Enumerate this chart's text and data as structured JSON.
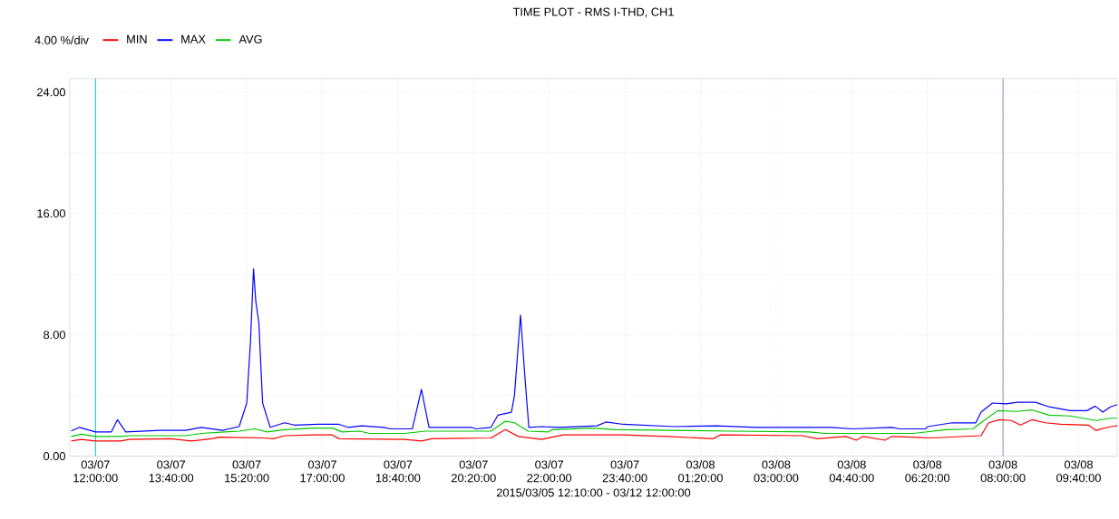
{
  "chart_data": {
    "type": "line",
    "title": "TIME PLOT - RMS I-THD, CH1",
    "xlabel": "2015/03/05 12:10:00 - 03/12 12:00:00",
    "annotations": [
      "4.00 %/div"
    ],
    "xlim": [
      "2015-03-07T11:26",
      "2015-03-08T10:31"
    ],
    "xticks": [
      {
        "value": "2015-03-07T12:00",
        "label": "03/07 12:00:00"
      },
      {
        "value": "2015-03-07T13:40",
        "label": "03/07 13:40:00"
      },
      {
        "value": "2015-03-07T15:20",
        "label": "03/07 15:20:00"
      },
      {
        "value": "2015-03-07T17:00",
        "label": "03/07 17:00:00"
      },
      {
        "value": "2015-03-07T18:40",
        "label": "03/07 18:40:00"
      },
      {
        "value": "2015-03-07T20:20",
        "label": "03/07 20:20:00"
      },
      {
        "value": "2015-03-07T22:00",
        "label": "03/07 22:00:00"
      },
      {
        "value": "2015-03-07T23:40",
        "label": "03/07 23:40:00"
      },
      {
        "value": "2015-03-08T01:20",
        "label": "03/08 01:20:00"
      },
      {
        "value": "2015-03-08T03:00",
        "label": "03/08 03:00:00"
      },
      {
        "value": "2015-03-08T04:40",
        "label": "03/08 04:40:00"
      },
      {
        "value": "2015-03-08T06:20",
        "label": "03/08 06:20:00"
      },
      {
        "value": "2015-03-08T08:00",
        "label": "03/08 08:00:00"
      },
      {
        "value": "2015-03-08T09:40",
        "label": "03/08 09:40:00"
      }
    ],
    "ylim": [
      0,
      24.9
    ],
    "yticks": [
      {
        "value": 0,
        "label": "0.00"
      },
      {
        "value": 4,
        "label": null
      },
      {
        "value": 8,
        "label": "8.00"
      },
      {
        "value": 12,
        "label": null
      },
      {
        "value": 16,
        "label": "16.00"
      },
      {
        "value": 20,
        "label": null
      },
      {
        "value": 24,
        "label": "24.00"
      }
    ],
    "grid": true,
    "legend": "top left",
    "ref_lines": [
      {
        "axis": "x",
        "value": "2015-03-07T12:00",
        "color": "#00c0c8"
      },
      {
        "axis": "x",
        "value": "2015-03-08T08:00",
        "color": "#8c8cc8"
      }
    ],
    "series": [
      {
        "name": "MIN",
        "color": "#ff0000",
        "x": [
          "2015-03-07T11:28",
          "2015-03-07T11:41",
          "2015-03-07T12:00",
          "2015-03-07T12:33",
          "2015-03-07T12:45",
          "2015-03-07T13:39",
          "2015-03-07T14:07",
          "2015-03-07T14:34",
          "2015-03-07T14:43",
          "2015-03-07T15:42",
          "2015-03-07T15:55",
          "2015-03-07T16:10",
          "2015-03-07T16:50",
          "2015-03-07T17:13",
          "2015-03-07T17:22",
          "2015-03-07T18:49",
          "2015-03-07T19:11",
          "2015-03-07T19:25",
          "2015-03-07T20:43",
          "2015-03-07T21:02",
          "2015-03-07T21:19",
          "2015-03-07T21:50",
          "2015-03-07T22:04",
          "2015-03-07T22:18",
          "2015-03-07T23:38",
          "2015-03-08T00:35",
          "2015-03-08T01:37",
          "2015-03-08T01:46",
          "2015-03-08T03:35",
          "2015-03-08T03:54",
          "2015-03-08T04:32",
          "2015-03-08T04:46",
          "2015-03-08T04:55",
          "2015-03-08T05:24",
          "2015-03-08T05:33",
          "2015-03-08T06:25",
          "2015-03-08T07:31",
          "2015-03-08T07:41",
          "2015-03-08T07:55",
          "2015-03-08T08:11",
          "2015-03-08T08:23",
          "2015-03-08T08:38",
          "2015-03-08T08:56",
          "2015-03-08T09:16",
          "2015-03-08T09:53",
          "2015-03-08T10:03",
          "2015-03-08T10:22",
          "2015-03-08T10:31"
        ],
        "values": [
          1.0,
          1.1,
          1.0,
          1.0,
          1.1,
          1.15,
          1.0,
          1.15,
          1.25,
          1.2,
          1.15,
          1.35,
          1.4,
          1.4,
          1.15,
          1.1,
          1.0,
          1.15,
          1.2,
          1.75,
          1.3,
          1.1,
          1.25,
          1.4,
          1.4,
          1.3,
          1.15,
          1.4,
          1.35,
          1.15,
          1.3,
          1.05,
          1.3,
          1.05,
          1.3,
          1.2,
          1.35,
          2.2,
          2.4,
          2.35,
          2.05,
          2.4,
          2.2,
          2.1,
          2.05,
          1.7,
          1.95,
          2.0
        ]
      },
      {
        "name": "MAX",
        "color": "#0000ff",
        "x": [
          "2015-03-07T11:28",
          "2015-03-07T11:39",
          "2015-03-07T12:00",
          "2015-03-07T12:21",
          "2015-03-07T12:29",
          "2015-03-07T12:40",
          "2015-03-07T13:26",
          "2015-03-07T13:59",
          "2015-03-07T14:20",
          "2015-03-07T14:48",
          "2015-03-07T15:10",
          "2015-03-07T15:20",
          "2015-03-07T15:25",
          "2015-03-07T15:29",
          "2015-03-07T15:32",
          "2015-03-07T15:36",
          "2015-03-07T15:41",
          "2015-03-07T15:51",
          "2015-03-07T16:10",
          "2015-03-07T16:23",
          "2015-03-07T16:55",
          "2015-03-07T17:22",
          "2015-03-07T17:34",
          "2015-03-07T17:52",
          "2015-03-07T18:21",
          "2015-03-07T18:30",
          "2015-03-07T18:59",
          "2015-03-07T19:11",
          "2015-03-07T19:21",
          "2015-03-07T20:17",
          "2015-03-07T20:23",
          "2015-03-07T20:43",
          "2015-03-07T20:52",
          "2015-03-07T21:10",
          "2015-03-07T21:14",
          "2015-03-07T21:22",
          "2015-03-07T21:28",
          "2015-03-07T21:33",
          "2015-03-07T21:50",
          "2015-03-07T22:13",
          "2015-03-07T23:03",
          "2015-03-07T23:15",
          "2015-03-07T23:38",
          "2015-03-08T00:45",
          "2015-03-08T01:41",
          "2015-03-08T02:34",
          "2015-03-08T04:13",
          "2015-03-08T04:41",
          "2015-03-08T05:33",
          "2015-03-08T05:43",
          "2015-03-08T06:18",
          "2015-03-08T06:20",
          "2015-03-08T06:53",
          "2015-03-08T07:24",
          "2015-03-08T07:31",
          "2015-03-08T07:46",
          "2015-03-08T08:04",
          "2015-03-08T08:19",
          "2015-03-08T08:43",
          "2015-03-08T09:01",
          "2015-03-08T09:29",
          "2015-03-08T09:51",
          "2015-03-08T10:02",
          "2015-03-08T10:12",
          "2015-03-08T10:22",
          "2015-03-08T10:31"
        ],
        "values": [
          1.66,
          1.9,
          1.6,
          1.6,
          2.4,
          1.6,
          1.7,
          1.7,
          1.9,
          1.7,
          1.95,
          3.5,
          7.6,
          12.35,
          10.2,
          8.8,
          3.5,
          1.9,
          2.2,
          2.05,
          2.1,
          2.1,
          1.9,
          2.0,
          1.9,
          1.8,
          1.8,
          4.4,
          1.9,
          1.9,
          1.8,
          1.9,
          2.7,
          2.9,
          4.0,
          9.3,
          5.1,
          1.9,
          1.95,
          1.9,
          2.0,
          2.25,
          2.1,
          1.95,
          2.0,
          1.9,
          1.9,
          1.8,
          1.9,
          1.8,
          1.8,
          1.95,
          2.2,
          2.2,
          2.9,
          3.5,
          3.45,
          3.55,
          3.55,
          3.25,
          3.0,
          3.0,
          3.3,
          2.9,
          3.25,
          3.4
        ]
      },
      {
        "name": "AVG",
        "color": "#00c800",
        "x": [
          "2015-03-07T11:28",
          "2015-03-07T11:41",
          "2015-03-07T12:00",
          "2015-03-07T12:33",
          "2015-03-07T12:45",
          "2015-03-07T13:59",
          "2015-03-07T14:20",
          "2015-03-07T15:10",
          "2015-03-07T15:31",
          "2015-03-07T15:47",
          "2015-03-07T16:10",
          "2015-03-07T16:50",
          "2015-03-07T17:13",
          "2015-03-07T17:26",
          "2015-03-07T17:49",
          "2015-03-07T18:03",
          "2015-03-07T18:49",
          "2015-03-07T19:16",
          "2015-03-07T20:19",
          "2015-03-07T20:43",
          "2015-03-07T21:02",
          "2015-03-07T21:14",
          "2015-03-07T21:32",
          "2015-03-07T21:59",
          "2015-03-07T22:04",
          "2015-03-07T22:56",
          "2015-03-07T23:29",
          "2015-03-08T02:01",
          "2015-03-08T03:44",
          "2015-03-08T04:04",
          "2015-03-08T04:41",
          "2015-03-08T06:02",
          "2015-03-08T06:44",
          "2015-03-08T07:20",
          "2015-03-08T07:36",
          "2015-03-08T07:53",
          "2015-03-08T08:19",
          "2015-03-08T08:38",
          "2015-03-08T09:01",
          "2015-03-08T09:29",
          "2015-03-08T10:03",
          "2015-03-08T10:22",
          "2015-03-08T10:31"
        ],
        "values": [
          1.3,
          1.45,
          1.3,
          1.3,
          1.35,
          1.35,
          1.5,
          1.65,
          1.8,
          1.6,
          1.75,
          1.85,
          1.85,
          1.6,
          1.65,
          1.5,
          1.5,
          1.65,
          1.65,
          1.65,
          2.3,
          2.2,
          1.65,
          1.6,
          1.75,
          1.85,
          1.75,
          1.65,
          1.6,
          1.5,
          1.5,
          1.5,
          1.75,
          1.8,
          2.4,
          3.0,
          2.95,
          3.05,
          2.7,
          2.65,
          2.35,
          2.5,
          2.5
        ]
      }
    ]
  }
}
